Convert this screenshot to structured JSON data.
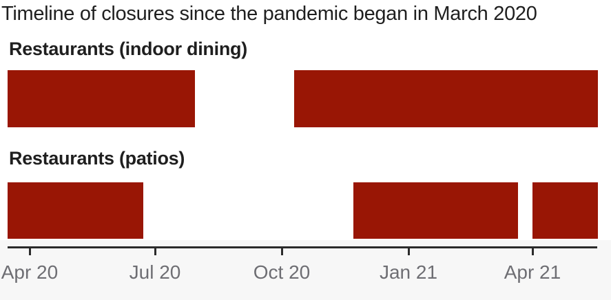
{
  "title": "Timeline of closures since the pandemic began in March 2020",
  "colors": {
    "page_bg": "#ffffff",
    "heading": "#1f1f1f",
    "bar": "#991605",
    "axis_line": "#2b2b2b",
    "axis_label": "#6e6e73",
    "axis_band_bg": "#f7f7f7"
  },
  "chart_data": {
    "type": "bar",
    "subtype": "horizontal-timeline-gantt",
    "title": "Timeline of closures since the pandemic began in March 2020",
    "grid": false,
    "legend": "none",
    "x_axis": {
      "domain_est": [
        "2020-03-16",
        "2021-05-17"
      ],
      "tick_labels": [
        "Apr 20",
        "Jul 20",
        "Oct 20",
        "Jan 21",
        "Apr 21"
      ],
      "ticks": [
        {
          "label": "Apr 20",
          "pos_pct": 3.73
        },
        {
          "label": "Jul 20",
          "pos_pct": 24.97
        },
        {
          "label": "Oct 20",
          "pos_pct": 46.44
        },
        {
          "label": "Jan 21",
          "pos_pct": 67.91
        },
        {
          "label": "Apr 21",
          "pos_pct": 88.91
        }
      ]
    },
    "rows": [
      {
        "label": "Restaurants (indoor dining)",
        "segments": [
          {
            "start_pct": 0.0,
            "end_pct": 31.7,
            "start_date_est": "2020-03-17",
            "end_date_est": "2020-07-31"
          },
          {
            "start_pct": 48.5,
            "end_pct": 100.0,
            "start_date_est": "2020-10-10",
            "end_date_est": "2021-05-17"
          }
        ]
      },
      {
        "label": "Restaurants (patios)",
        "segments": [
          {
            "start_pct": 0.0,
            "end_pct": 23.0,
            "start_date_est": "2020-03-17",
            "end_date_est": "2020-06-22"
          },
          {
            "start_pct": 58.6,
            "end_pct": 86.5,
            "start_date_est": "2020-11-23",
            "end_date_est": "2021-03-20"
          },
          {
            "start_pct": 88.9,
            "end_pct": 100.0,
            "start_date_est": "2021-04-03",
            "end_date_est": "2021-05-17"
          }
        ]
      }
    ]
  }
}
